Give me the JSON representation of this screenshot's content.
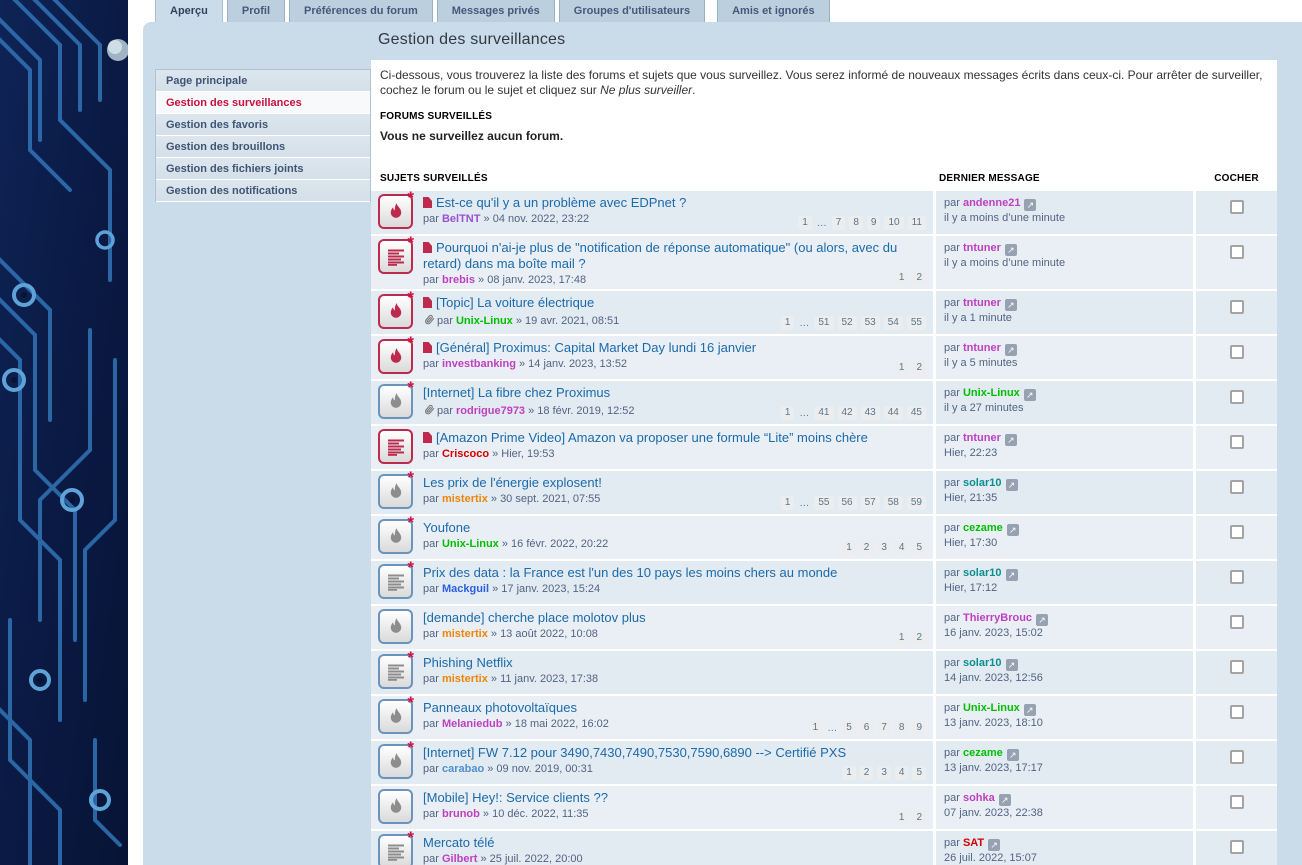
{
  "page_title": "Gestion des surveillances",
  "tabs": [
    {
      "label": "Aperçu",
      "active": true
    },
    {
      "label": "Profil",
      "active": false
    },
    {
      "label": "Préférences du forum",
      "active": false
    },
    {
      "label": "Messages privés",
      "active": false
    },
    {
      "label": "Groupes d'utilisateurs",
      "active": false
    },
    {
      "label": "Amis et ignorés",
      "active": false,
      "last": true
    }
  ],
  "sidebar": {
    "items": [
      {
        "label": "Page principale",
        "active": false
      },
      {
        "label": "Gestion des surveillances",
        "active": true
      },
      {
        "label": "Gestion des favoris",
        "active": false
      },
      {
        "label": "Gestion des brouillons",
        "active": false
      },
      {
        "label": "Gestion des fichiers joints",
        "active": false
      },
      {
        "label": "Gestion des notifications",
        "active": false
      }
    ]
  },
  "intro": {
    "text": "Ci-dessous, vous trouverez la liste des forums et sujets que vous surveillez. Vous serez informé de nouveaux messages écrits dans ceux-ci. Pour arrêter de surveiller, cochez le forum ou le sujet et cliquez sur ",
    "em": "Ne plus surveiller",
    "suffix": "."
  },
  "forums_section": {
    "title": "FORUMS SURVEILLÉS",
    "empty": "Vous ne surveillez aucun forum."
  },
  "topics_section": {
    "by_label": "par",
    "sep": "»",
    "headers": {
      "topics": "SUJETS SURVEILLÉS",
      "last": "DERNIER MESSAGE",
      "check": "COCHER"
    },
    "rows": [
      {
        "icon": "flame",
        "starred": true,
        "unread": true,
        "attachment": false,
        "title": "Est-ce qu'il y a un problème avec EDPnet ?",
        "author": {
          "name": "BelTNT",
          "color": "#9a50d0"
        },
        "posted": "04 nov. 2022, 23:22",
        "pages": [
          "1",
          "…",
          "7",
          "8",
          "9",
          "10",
          "11"
        ],
        "last": {
          "name": "andenne21",
          "color": "#bf3fbf",
          "time": "il y a moins d’une minute"
        }
      },
      {
        "icon": "doc",
        "starred": true,
        "unread": true,
        "attachment": false,
        "title": "Pourquoi n'ai-je plus de \"notification de réponse automatique\" (ou alors, avec du retard) dans ma boîte mail ?",
        "author": {
          "name": "brebis",
          "color": "#bf3fbf"
        },
        "posted": "08 janv. 2023, 17:48",
        "pages": [
          "1",
          "2"
        ],
        "last": {
          "name": "tntuner",
          "color": "#bf3fbf",
          "time": "il y a moins d’une minute"
        }
      },
      {
        "icon": "flame",
        "starred": true,
        "unread": true,
        "attachment": true,
        "title": "[Topic] La voiture électrique",
        "author": {
          "name": "Unix-Linux",
          "color": "#00bf00"
        },
        "posted": "19 avr. 2021, 08:51",
        "pages": [
          "1",
          "…",
          "51",
          "52",
          "53",
          "54",
          "55"
        ],
        "last": {
          "name": "tntuner",
          "color": "#bf3fbf",
          "time": "il y a 1 minute"
        }
      },
      {
        "icon": "flame",
        "starred": true,
        "unread": true,
        "attachment": false,
        "title": "[Général] Proximus: Capital Market Day lundi 16 janvier",
        "author": {
          "name": "investbanking",
          "color": "#bf3fbf"
        },
        "posted": "14 janv. 2023, 13:52",
        "pages": [
          "1",
          "2"
        ],
        "last": {
          "name": "tntuner",
          "color": "#bf3fbf",
          "time": "il y a 5 minutes"
        }
      },
      {
        "icon": "flame",
        "starred": true,
        "unread": false,
        "attachment": true,
        "title": "[Internet] La fibre chez Proximus",
        "author": {
          "name": "rodrigue7973",
          "color": "#bf3fbf"
        },
        "posted": "18 févr. 2019, 12:52",
        "pages": [
          "1",
          "…",
          "41",
          "42",
          "43",
          "44",
          "45"
        ],
        "last": {
          "name": "Unix-Linux",
          "color": "#00bf00",
          "time": "il y a 27 minutes"
        }
      },
      {
        "icon": "doc",
        "starred": false,
        "unread": true,
        "attachment": false,
        "title": "[Amazon Prime Video] Amazon va proposer une formule “Lite” moins chère",
        "author": {
          "name": "Criscoco",
          "color": "#d40000"
        },
        "posted": "Hier, 19:53",
        "pages": [],
        "last": {
          "name": "tntuner",
          "color": "#bf3fbf",
          "time": "Hier, 22:23"
        }
      },
      {
        "icon": "flame",
        "starred": true,
        "unread": false,
        "attachment": false,
        "title": "Les prix de l'énergie explosent!",
        "author": {
          "name": "mistertix",
          "color": "#ee8509"
        },
        "posted": "30 sept. 2021, 07:55",
        "pages": [
          "1",
          "…",
          "55",
          "56",
          "57",
          "58",
          "59"
        ],
        "last": {
          "name": "solar10",
          "color": "#0a8f8f",
          "time": "Hier, 21:35"
        }
      },
      {
        "icon": "flame",
        "starred": true,
        "unread": false,
        "attachment": false,
        "title": "Youfone",
        "author": {
          "name": "Unix-Linux",
          "color": "#00bf00"
        },
        "posted": "16 févr. 2022, 20:22",
        "pages": [
          "1",
          "2",
          "3",
          "4",
          "5"
        ],
        "last": {
          "name": "cezame",
          "color": "#00bf00",
          "time": "Hier, 17:30"
        }
      },
      {
        "icon": "doc",
        "starred": true,
        "unread": false,
        "attachment": false,
        "title": "Prix des data : la France est l'un des 10 pays les moins chers au monde",
        "author": {
          "name": "Mackguil",
          "color": "#2b5fe0"
        },
        "posted": "17 janv. 2023, 15:24",
        "pages": [],
        "last": {
          "name": "solar10",
          "color": "#0a8f8f",
          "time": "Hier, 17:12"
        }
      },
      {
        "icon": "flame",
        "starred": false,
        "unread": false,
        "attachment": false,
        "title": "[demande] cherche place molotov plus",
        "author": {
          "name": "mistertix",
          "color": "#ee8509"
        },
        "posted": "13 août 2022, 10:08",
        "pages": [
          "1",
          "2"
        ],
        "last": {
          "name": "ThierryBrouc",
          "color": "#bf3fbf",
          "time": "16 janv. 2023, 15:02"
        }
      },
      {
        "icon": "doc",
        "starred": true,
        "unread": false,
        "attachment": false,
        "title": "Phishing Netflix",
        "author": {
          "name": "mistertix",
          "color": "#ee8509"
        },
        "posted": "11 janv. 2023, 17:38",
        "pages": [],
        "last": {
          "name": "solar10",
          "color": "#0a8f8f",
          "time": "14 janv. 2023, 12:56"
        }
      },
      {
        "icon": "flame",
        "starred": true,
        "unread": false,
        "attachment": false,
        "title": "Panneaux photovoltaïques",
        "author": {
          "name": "Melaniedub",
          "color": "#bf3fbf"
        },
        "posted": "18 mai 2022, 16:02",
        "pages": [
          "1",
          "…",
          "5",
          "6",
          "7",
          "8",
          "9"
        ],
        "last": {
          "name": "Unix-Linux",
          "color": "#00bf00",
          "time": "13 janv. 2023, 18:10"
        }
      },
      {
        "icon": "flame",
        "starred": true,
        "unread": false,
        "attachment": false,
        "title": "[Internet] FW 7.12 pour 3490,7430,7490,7530,7590,6890 --> Certifié PXS",
        "author": {
          "name": "carabao",
          "color": "#4f8fd0"
        },
        "posted": "09 nov. 2019, 00:31",
        "pages": [
          "1",
          "2",
          "3",
          "4",
          "5"
        ],
        "last": {
          "name": "cezame",
          "color": "#00bf00",
          "time": "13 janv. 2023, 17:17"
        }
      },
      {
        "icon": "flame",
        "starred": false,
        "unread": false,
        "attachment": false,
        "title": "[Mobile] Hey!: Service clients ??",
        "author": {
          "name": "brunob",
          "color": "#bf3fbf"
        },
        "posted": "10 déc. 2022, 11:35",
        "pages": [
          "1",
          "2"
        ],
        "last": {
          "name": "sohka",
          "color": "#bf3fbf",
          "time": "07 janv. 2023, 22:38"
        }
      },
      {
        "icon": "doc",
        "starred": true,
        "unread": false,
        "attachment": false,
        "title": "Mercato télé",
        "author": {
          "name": "Gilbert",
          "color": "#bf3fbf"
        },
        "posted": "25 juil. 2022, 20:00",
        "pages": [],
        "last": {
          "name": "SAT",
          "color": "#d40000",
          "time": "26 juil. 2022, 15:07"
        }
      }
    ]
  },
  "colors": {
    "accent_unread": "#bc2a4d",
    "icon_read_border": "#6b94bd",
    "icon_read_glyph": "#8d8d8d",
    "star": "#d31141",
    "link": "#1b6aaa",
    "panel_bg": "#cadbe9",
    "active_menu_text": "#c8113f"
  },
  "icons": {
    "flame": "flame-icon",
    "doc": "doc-lines-icon",
    "attachment": "paperclip-icon",
    "unread_marker": "new-posts-icon",
    "goto": "goto-last-post-icon"
  }
}
